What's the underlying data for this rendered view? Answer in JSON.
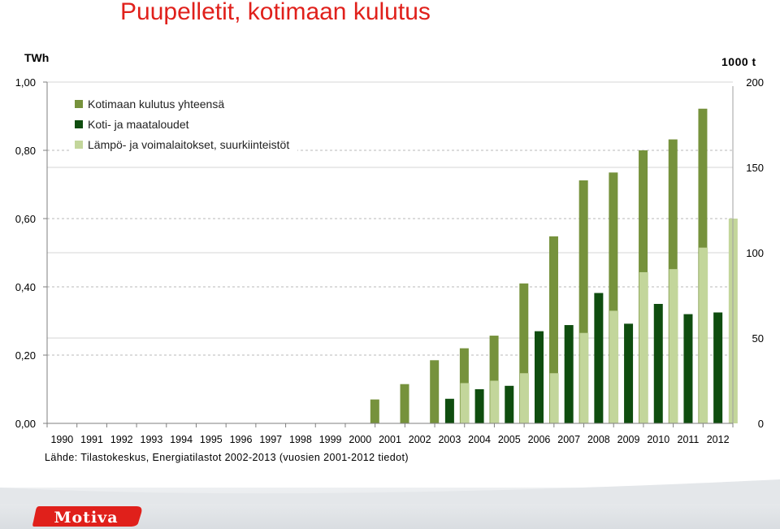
{
  "title": "Puupelletit, kotimaan kulutus",
  "unit_left": "TWh",
  "unit_right": "1000 t",
  "source": "Lähde: Tilastokeskus, Energiatilastot 2002-2013 (vuosien 2001-2012 tiedot)",
  "logo_text": "Motiva",
  "colors": {
    "title": "#e0201b",
    "total": "#76923c",
    "household": "#0f4d0f",
    "heat": "#c3d69b",
    "logo": "#e0201b"
  },
  "chart_data": {
    "type": "bar",
    "title": "Puupelletit, kotimaan kulutus",
    "categories": [
      "1990",
      "1991",
      "1992",
      "1993",
      "1994",
      "1995",
      "1996",
      "1997",
      "1998",
      "1999",
      "2000",
      "2001",
      "2002",
      "2003",
      "2004",
      "2005",
      "2006",
      "2007",
      "2008",
      "2009",
      "2010",
      "2011",
      "2012"
    ],
    "series": [
      {
        "name": "Kotimaan kulutus yhteensä",
        "color": "#76923c",
        "values": [
          null,
          null,
          null,
          null,
          null,
          null,
          null,
          null,
          null,
          null,
          null,
          0.07,
          0.115,
          0.185,
          0.22,
          0.257,
          0.41,
          0.548,
          0.712,
          0.735,
          0.8,
          0.832,
          0.922
        ]
      },
      {
        "name": "Koti- ja maataloudet",
        "color": "#0f4d0f",
        "values": [
          null,
          null,
          null,
          null,
          null,
          null,
          null,
          null,
          null,
          null,
          null,
          null,
          null,
          0.072,
          0.1,
          0.11,
          0.27,
          0.288,
          0.382,
          0.292,
          0.35,
          0.32,
          0.325
        ]
      },
      {
        "name": "Lämpö- ja voimalaitokset, suurkiinteistöt",
        "color": "#c3d69b",
        "values": [
          null,
          null,
          null,
          null,
          null,
          null,
          null,
          null,
          null,
          null,
          null,
          null,
          null,
          0.118,
          0.125,
          0.147,
          0.147,
          0.265,
          0.33,
          0.443,
          0.452,
          0.515,
          0.6
        ]
      }
    ],
    "y_left": {
      "label": "TWh",
      "lim": [
        0,
        1.0
      ],
      "ticks": [
        0,
        0.2,
        0.4,
        0.6,
        0.8,
        1.0
      ],
      "tick_labels": [
        "0,00",
        "0,20",
        "0,40",
        "0,60",
        "0,80",
        "1,00"
      ]
    },
    "y_right": {
      "label": "1000 t",
      "lim": [
        0,
        200
      ],
      "ticks": [
        0,
        50,
        100,
        150,
        200
      ],
      "tick_labels": [
        "0",
        "50",
        "100",
        "150",
        "200"
      ]
    },
    "legend_position": "top-left",
    "grid": true
  }
}
